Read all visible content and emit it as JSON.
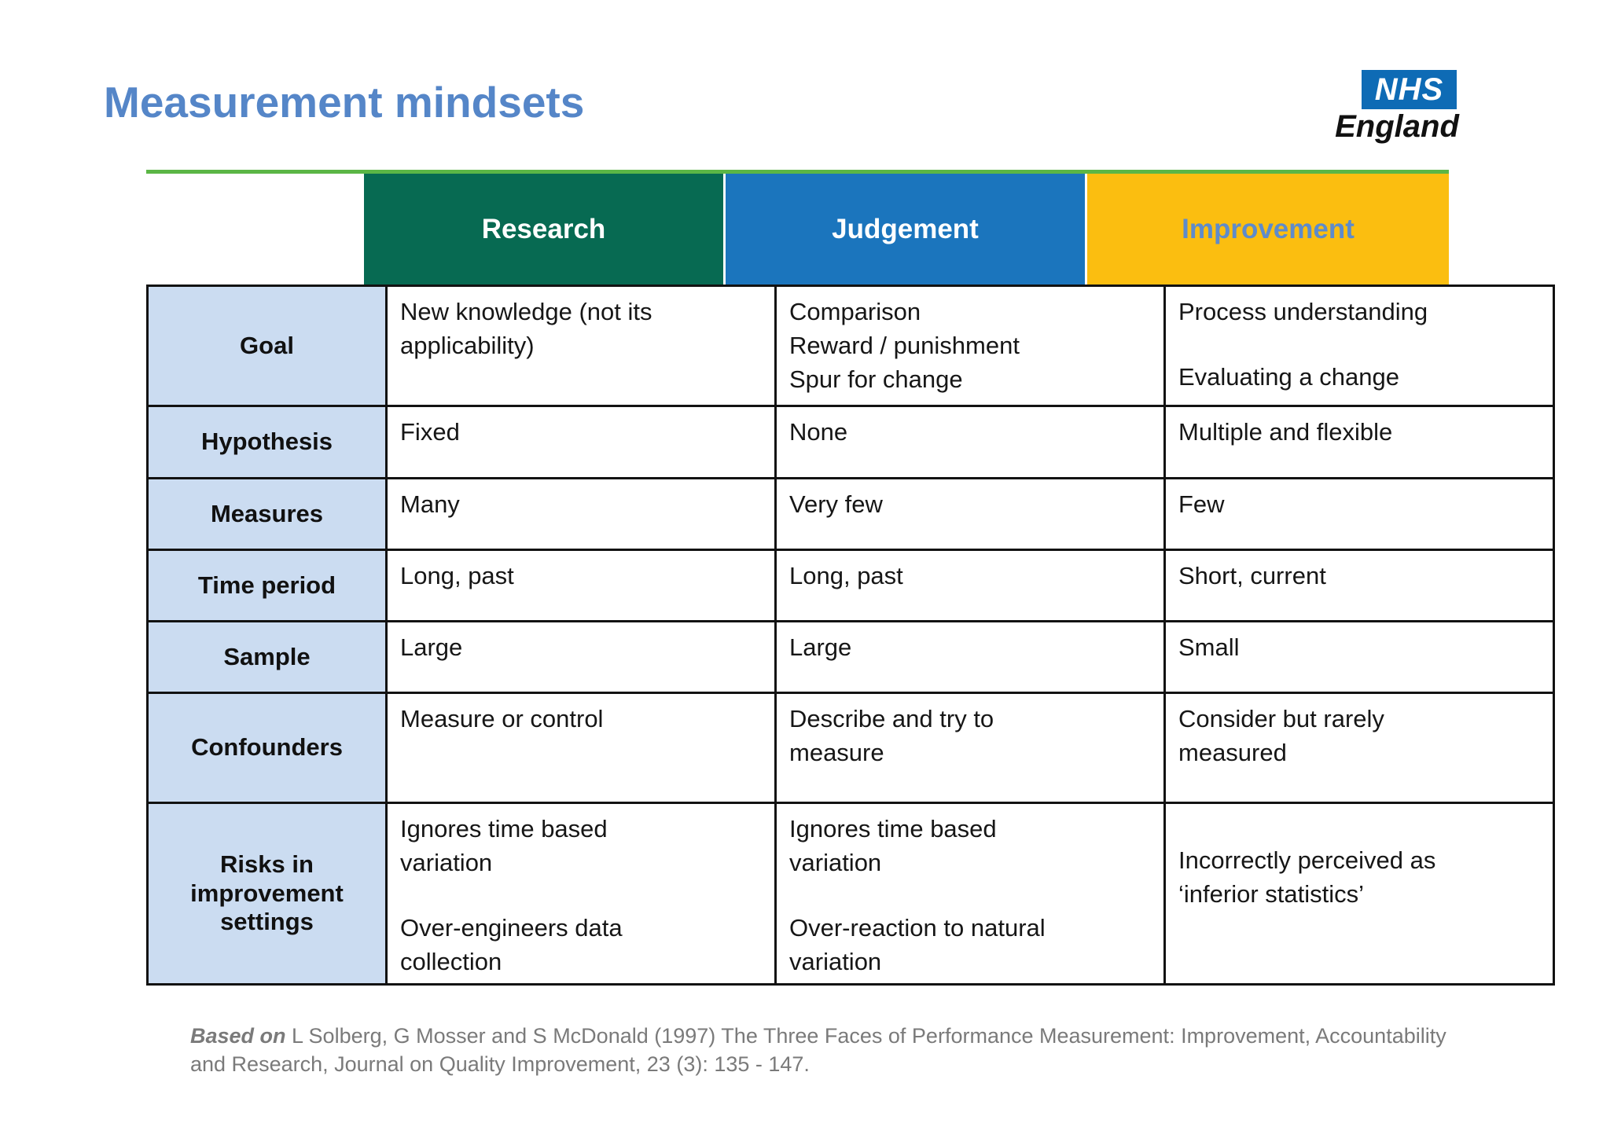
{
  "title": "Measurement mindsets",
  "logo": {
    "nhs": "NHS",
    "org": "England"
  },
  "columns": [
    "Research",
    "Judgement",
    "Improvement"
  ],
  "table": {
    "rows": [
      {
        "label": "Goal",
        "cells": [
          [
            "New knowledge (not its",
            "applicability)"
          ],
          [
            "Comparison",
            "Reward / punishment",
            "Spur for change"
          ],
          [
            "Process understanding",
            "",
            "Evaluating a change"
          ]
        ]
      },
      {
        "label": "Hypothesis",
        "cells": [
          [
            "Fixed"
          ],
          [
            "None"
          ],
          [
            "Multiple and flexible"
          ]
        ]
      },
      {
        "label": "Measures",
        "cells": [
          [
            "Many"
          ],
          [
            "Very few"
          ],
          [
            "Few"
          ]
        ]
      },
      {
        "label": "Time period",
        "cells": [
          [
            "Long, past"
          ],
          [
            "Long, past"
          ],
          [
            "Short, current"
          ]
        ]
      },
      {
        "label": "Sample",
        "cells": [
          [
            "Large"
          ],
          [
            "Large"
          ],
          [
            "Small"
          ]
        ]
      },
      {
        "label": "Confounders",
        "cells": [
          [
            "Measure or control"
          ],
          [
            "Describe and try to",
            "measure"
          ],
          [
            "Consider but rarely",
            "measured"
          ]
        ]
      },
      {
        "label": "Risks in improvement settings",
        "cells": [
          [
            "Ignores time based",
            "variation",
            "",
            "Over-engineers data",
            "collection"
          ],
          [
            "Ignores time based",
            "variation",
            "",
            "Over-reaction to natural",
            "variation"
          ],
          [
            "",
            "Incorrectly perceived as",
            "‘inferior statistics’"
          ]
        ]
      }
    ]
  },
  "citation": {
    "prefix": "Based on",
    "line1": " L Solberg, G Mosser and S McDonald (1997) The Three Faces of Performance Measurement: Improvement, Accountability",
    "line2": "and Research, Journal on Quality Improvement, 23 (3): 135 - 147."
  },
  "colors": {
    "title_blue": "#5586C8",
    "header_green": "#076A52",
    "header_blue": "#1B75BD",
    "header_gold": "#FBBE10",
    "improvement_text_blue": "#5E8BCB",
    "underline_green": "#5BB646",
    "row_label_bg": "#CBDCF1",
    "nhs_blue": "#0E6BB5",
    "citation_gray": "#7A7A7A"
  }
}
